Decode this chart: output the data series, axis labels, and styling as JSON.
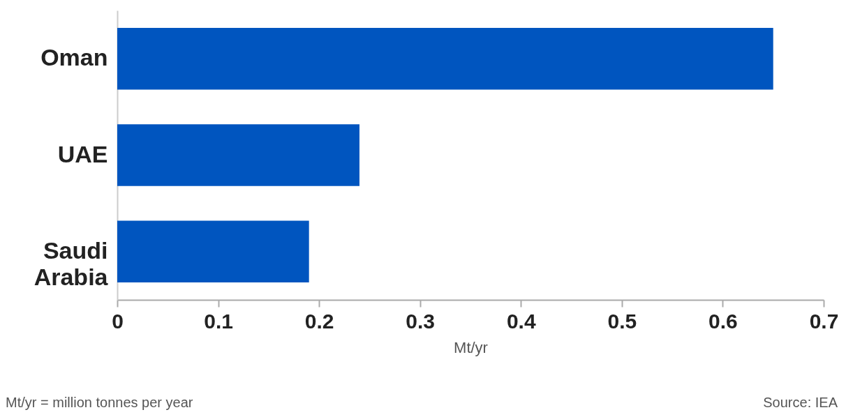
{
  "chart_data": {
    "type": "bar",
    "orientation": "horizontal",
    "categories": [
      "Oman",
      "UAE",
      "Saudi Arabia"
    ],
    "values": [
      0.65,
      0.24,
      0.19
    ],
    "color": "#0055bf",
    "xlabel": "Mt/yr",
    "xlim": [
      0,
      0.7
    ],
    "xticks": [
      0,
      0.1,
      0.2,
      0.3,
      0.4,
      0.5,
      0.6,
      0.7
    ],
    "grid": false,
    "annotations": [
      "Mt/yr = million tonnes per year",
      "Source: IEA"
    ]
  }
}
